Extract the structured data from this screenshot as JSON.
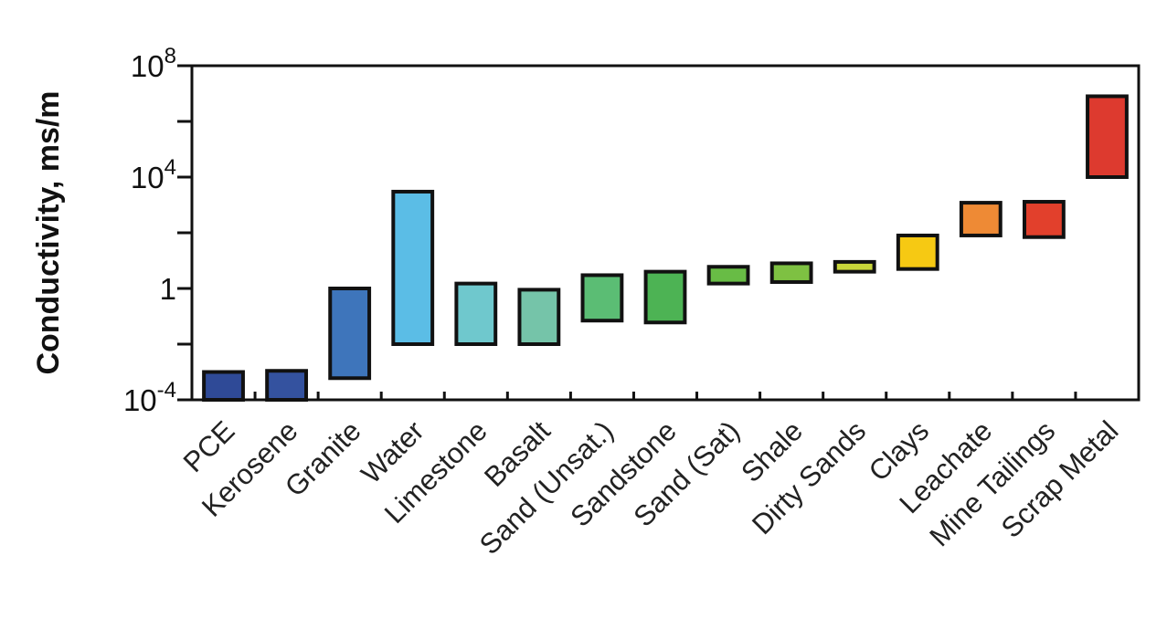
{
  "chart_data": {
    "type": "bar",
    "ylabel": "Conductivity, ms/m",
    "yscale": "log",
    "ylim": [
      0.0001,
      100000000
    ],
    "yticks": [
      {
        "base": "10",
        "exp": "8"
      },
      {
        "base": "10",
        "exp": "4"
      },
      {
        "base": "1",
        "exp": ""
      },
      {
        "base": "10",
        "exp": "-4"
      }
    ],
    "categories": [
      "PCE",
      "Kerosene",
      "Granite",
      "Water",
      "Limestone",
      "Basalt",
      "Sand (Unsat.)",
      "Sandstone",
      "Sand (Sat)",
      "Shale",
      "Dirty Sands",
      "Clays",
      "Leachate",
      "Mine Tailings",
      "Scrap Metal"
    ],
    "ranges": [
      {
        "low": 0.0001,
        "high": 0.001,
        "color": "#2f4a97"
      },
      {
        "low": 0.0001,
        "high": 0.0011,
        "color": "#34529f"
      },
      {
        "low": 0.0006,
        "high": 1,
        "color": "#3e75bb"
      },
      {
        "low": 0.01,
        "high": 3000,
        "color": "#5bbde6"
      },
      {
        "low": 0.01,
        "high": 1.5,
        "color": "#6fc8cd"
      },
      {
        "low": 0.01,
        "high": 0.9,
        "color": "#75c4a9"
      },
      {
        "low": 0.07,
        "high": 3,
        "color": "#5bbd74"
      },
      {
        "low": 0.06,
        "high": 4,
        "color": "#4db354"
      },
      {
        "low": 1.5,
        "high": 6,
        "color": "#68bc45"
      },
      {
        "low": 1.7,
        "high": 8,
        "color": "#7ec142"
      },
      {
        "low": 4,
        "high": 9,
        "color": "#c8d53a"
      },
      {
        "low": 5,
        "high": 80,
        "color": "#f6c913"
      },
      {
        "low": 80,
        "high": 1200,
        "color": "#ee8a35"
      },
      {
        "low": 70,
        "high": 1300,
        "color": "#e2402c"
      },
      {
        "low": 10000,
        "high": 8000000,
        "color": "#dd3a2f"
      }
    ],
    "grid": false
  }
}
